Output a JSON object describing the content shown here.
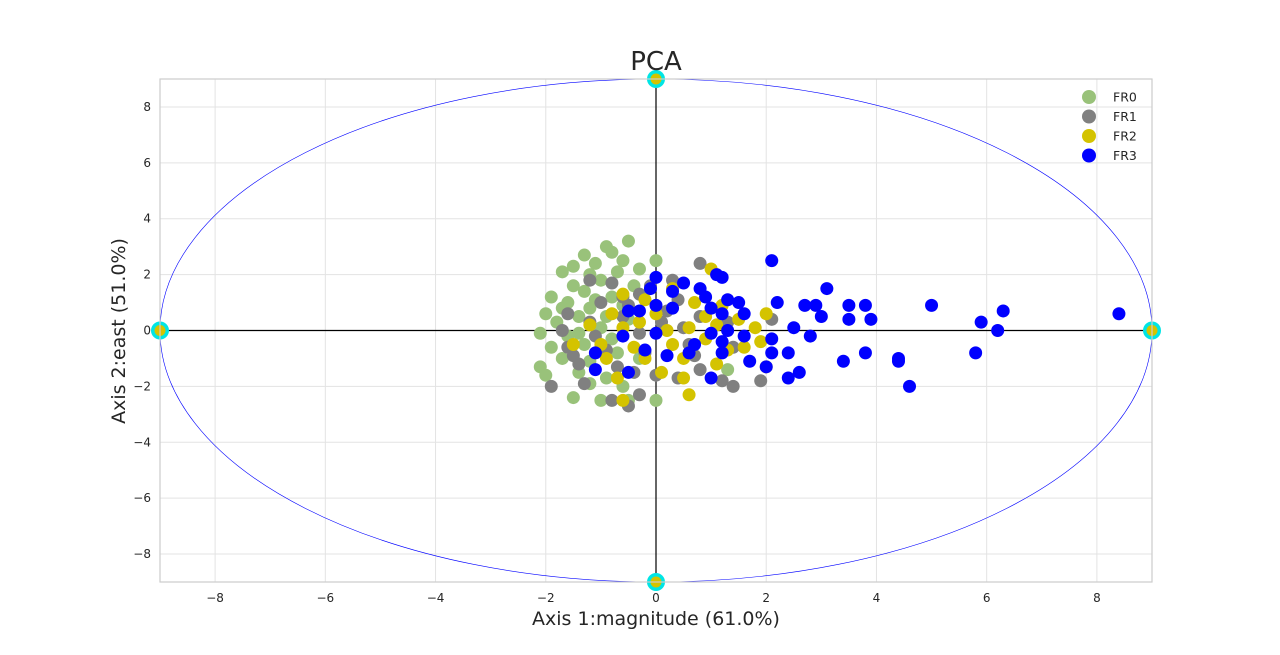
{
  "chart_data": {
    "type": "scatter",
    "title": "PCA",
    "xlabel": "Axis 1:magnitude (61.0%)",
    "ylabel": "Axis 2:east (51.0%)",
    "xlim": [
      -9,
      9
    ],
    "ylim": [
      -9,
      9
    ],
    "xticks": [
      -8,
      -6,
      -4,
      -2,
      0,
      2,
      4,
      6,
      8
    ],
    "yticks": [
      -8,
      -6,
      -4,
      -2,
      0,
      2,
      4,
      6,
      8
    ],
    "grid": true,
    "legend_position": "top-right",
    "ellipse": {
      "cx": 0,
      "cy": 0,
      "rx": 9,
      "ry": 9,
      "color": "#0000ff"
    },
    "axis_markers": [
      [
        -9,
        0
      ],
      [
        9,
        0
      ],
      [
        0,
        9
      ],
      [
        0,
        -9
      ]
    ],
    "series": [
      {
        "name": "FR0",
        "color": "#99c27a",
        "points": [
          [
            -0.9,
            3.0
          ],
          [
            -0.5,
            3.2
          ],
          [
            -1.3,
            2.7
          ],
          [
            -0.8,
            2.8
          ],
          [
            -1.5,
            2.3
          ],
          [
            -0.6,
            2.5
          ],
          [
            -1.1,
            2.4
          ],
          [
            -0.3,
            2.2
          ],
          [
            0,
            2.5
          ],
          [
            -1.7,
            2.1
          ],
          [
            -1.2,
            2.0
          ],
          [
            -0.7,
            2.1
          ],
          [
            -1.5,
            1.6
          ],
          [
            -1.0,
            1.8
          ],
          [
            -0.4,
            1.6
          ],
          [
            -1.9,
            1.2
          ],
          [
            -1.3,
            1.4
          ],
          [
            -0.8,
            1.2
          ],
          [
            -1.6,
            1.0
          ],
          [
            -2.0,
            0.6
          ],
          [
            -1.2,
            0.8
          ],
          [
            -0.6,
            0.9
          ],
          [
            -1.8,
            0.3
          ],
          [
            -1.4,
            0.5
          ],
          [
            -2.1,
            -0.1
          ],
          [
            -1.6,
            -0.2
          ],
          [
            -1.0,
            0.1
          ],
          [
            -0.5,
            0.4
          ],
          [
            -1.9,
            -0.6
          ],
          [
            -1.3,
            -0.5
          ],
          [
            -0.8,
            -0.3
          ],
          [
            -2.1,
            -1.3
          ],
          [
            -1.7,
            -1.0
          ],
          [
            -1.2,
            -1.1
          ],
          [
            -0.7,
            -0.8
          ],
          [
            -2.0,
            -1.6
          ],
          [
            -1.4,
            -1.5
          ],
          [
            -0.9,
            -1.7
          ],
          [
            -1.5,
            -2.4
          ],
          [
            -1.0,
            -2.5
          ],
          [
            -0.5,
            -2.5
          ],
          [
            0,
            -2.5
          ],
          [
            -1.2,
            -1.9
          ],
          [
            -0.6,
            -2.0
          ],
          [
            1.3,
            -1.4
          ],
          [
            -0.3,
            -1.0
          ],
          [
            -1.7,
            0.8
          ],
          [
            -1.4,
            -0.1
          ],
          [
            -0.9,
            0.5
          ],
          [
            -1.1,
            1.1
          ]
        ]
      },
      {
        "name": "FR1",
        "color": "#808080",
        "points": [
          [
            0.8,
            2.4
          ],
          [
            -0.1,
            1.6
          ],
          [
            -1.2,
            1.8
          ],
          [
            -0.8,
            1.7
          ],
          [
            -0.3,
            1.3
          ],
          [
            0.4,
            1.1
          ],
          [
            -1.0,
            1.0
          ],
          [
            -0.5,
            0.9
          ],
          [
            0.2,
            0.7
          ],
          [
            -1.6,
            0.6
          ],
          [
            -1.2,
            0.3
          ],
          [
            -0.6,
            0.5
          ],
          [
            0.1,
            0.3
          ],
          [
            0.8,
            0.5
          ],
          [
            -1.7,
            0
          ],
          [
            -1.1,
            -0.2
          ],
          [
            -0.3,
            -0.1
          ],
          [
            0.5,
            0.1
          ],
          [
            1.3,
            0.3
          ],
          [
            2.1,
            0.4
          ],
          [
            -1.6,
            -0.6
          ],
          [
            -0.9,
            -0.7
          ],
          [
            -0.2,
            -0.8
          ],
          [
            0.6,
            -0.5
          ],
          [
            1.4,
            -0.6
          ],
          [
            -1.4,
            -1.2
          ],
          [
            -0.7,
            -1.3
          ],
          [
            0,
            -1.6
          ],
          [
            0.8,
            -1.4
          ],
          [
            1.2,
            -1.8
          ],
          [
            1.4,
            -2.0
          ],
          [
            1.9,
            -1.8
          ],
          [
            -1.9,
            -2.0
          ],
          [
            -1.3,
            -1.9
          ],
          [
            -0.8,
            -2.5
          ],
          [
            -0.5,
            -2.7
          ],
          [
            -0.3,
            -2.3
          ],
          [
            0.4,
            -1.7
          ],
          [
            -0.6,
            1.2
          ],
          [
            0.3,
            1.8
          ],
          [
            -1.5,
            -0.9
          ],
          [
            -0.4,
            -1.5
          ],
          [
            0.7,
            -0.9
          ],
          [
            1.0,
            0.8
          ]
        ]
      },
      {
        "name": "FR2",
        "color": "#d4c300",
        "points": [
          [
            1.0,
            2.2
          ],
          [
            0.3,
            1.5
          ],
          [
            -0.6,
            1.3
          ],
          [
            -0.2,
            1.1
          ],
          [
            0.7,
            1.0
          ],
          [
            1.2,
            0.9
          ],
          [
            -0.8,
            0.6
          ],
          [
            0,
            0.6
          ],
          [
            0.9,
            0.5
          ],
          [
            1.5,
            0.4
          ],
          [
            2.0,
            0.6
          ],
          [
            -1.2,
            0.2
          ],
          [
            -0.6,
            0.1
          ],
          [
            0.2,
            0
          ],
          [
            0.6,
            0.1
          ],
          [
            1.1,
            0.2
          ],
          [
            1.8,
            0.1
          ],
          [
            -1.5,
            -0.5
          ],
          [
            -1.0,
            -0.5
          ],
          [
            -0.4,
            -0.6
          ],
          [
            0.3,
            -0.5
          ],
          [
            0.9,
            -0.3
          ],
          [
            1.6,
            -0.6
          ],
          [
            1.9,
            -0.4
          ],
          [
            -0.9,
            -1.0
          ],
          [
            -0.2,
            -1.0
          ],
          [
            0.5,
            -1.0
          ],
          [
            1.1,
            -1.2
          ],
          [
            -0.7,
            -1.7
          ],
          [
            0.1,
            -1.5
          ],
          [
            0.5,
            -1.7
          ],
          [
            -0.6,
            -2.5
          ],
          [
            0.6,
            -2.3
          ],
          [
            2.0,
            -1.3
          ],
          [
            1.3,
            -0.7
          ],
          [
            -0.3,
            0.3
          ]
        ]
      },
      {
        "name": "FR3",
        "color": "#0000ff",
        "points": [
          [
            0,
            1.9
          ],
          [
            1.1,
            2.0
          ],
          [
            1.2,
            1.9
          ],
          [
            2.1,
            2.5
          ],
          [
            0.5,
            1.7
          ],
          [
            -0.1,
            1.5
          ],
          [
            0.3,
            1.4
          ],
          [
            0.8,
            1.5
          ],
          [
            0.9,
            1.2
          ],
          [
            1.3,
            1.1
          ],
          [
            1.5,
            1.0
          ],
          [
            -0.5,
            0.7
          ],
          [
            -0.3,
            0.7
          ],
          [
            0,
            0.9
          ],
          [
            0.3,
            0.8
          ],
          [
            1.0,
            0.8
          ],
          [
            1.2,
            0.6
          ],
          [
            1.6,
            0.6
          ],
          [
            2.2,
            1.0
          ],
          [
            2.7,
            0.9
          ],
          [
            3.1,
            1.5
          ],
          [
            2.9,
            0.9
          ],
          [
            3.0,
            0.5
          ],
          [
            3.5,
            0.9
          ],
          [
            3.8,
            0.9
          ],
          [
            3.9,
            0.4
          ],
          [
            3.5,
            0.4
          ],
          [
            5.0,
            0.9
          ],
          [
            5.9,
            0.3
          ],
          [
            6.2,
            0
          ],
          [
            6.3,
            0.7
          ],
          [
            8.4,
            0.6
          ],
          [
            -0.6,
            -0.2
          ],
          [
            0,
            -0.1
          ],
          [
            1.0,
            -0.1
          ],
          [
            1.3,
            0
          ],
          [
            1.6,
            -0.2
          ],
          [
            2.1,
            -0.3
          ],
          [
            2.5,
            0.1
          ],
          [
            2.8,
            -0.2
          ],
          [
            -1.1,
            -0.8
          ],
          [
            -0.2,
            -0.7
          ],
          [
            0.2,
            -0.9
          ],
          [
            0.7,
            -0.5
          ],
          [
            1.2,
            -0.4
          ],
          [
            1.7,
            -1.1
          ],
          [
            2.1,
            -0.8
          ],
          [
            2.4,
            -0.8
          ],
          [
            2.0,
            -1.3
          ],
          [
            2.6,
            -1.5
          ],
          [
            2.4,
            -1.7
          ],
          [
            3.4,
            -1.1
          ],
          [
            3.8,
            -0.8
          ],
          [
            4.4,
            -1.0
          ],
          [
            4.4,
            -1.1
          ],
          [
            4.6,
            -2.0
          ],
          [
            5.8,
            -0.8
          ],
          [
            1.0,
            -1.7
          ],
          [
            -1.1,
            -1.4
          ],
          [
            -0.5,
            -1.5
          ],
          [
            0.6,
            -0.8
          ],
          [
            1.2,
            -0.8
          ]
        ]
      }
    ]
  }
}
